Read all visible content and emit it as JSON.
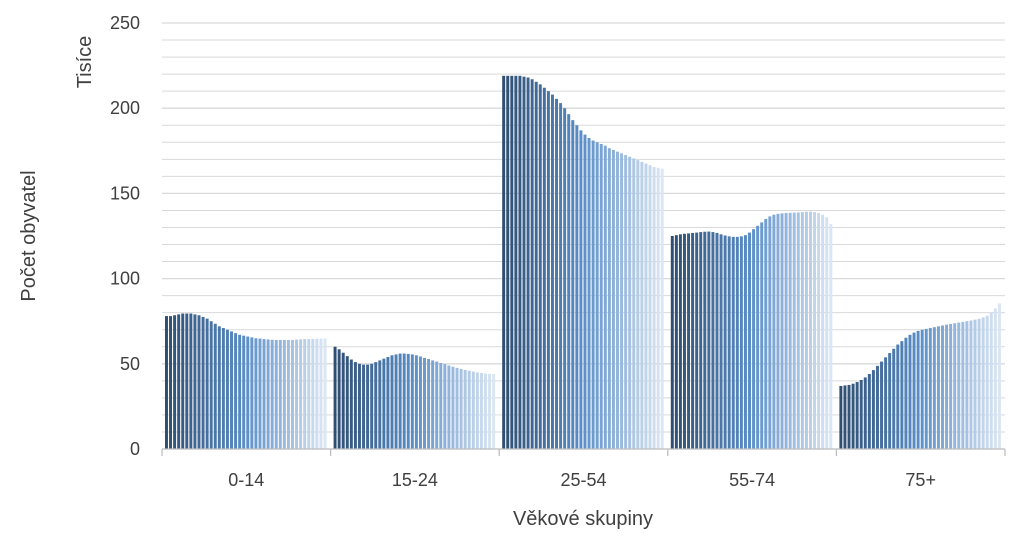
{
  "chart_data": {
    "type": "bar",
    "title": "",
    "xlabel": "Věkové skupiny",
    "ylabel": "Počet obyvatel",
    "unit_label": "Tisíce",
    "ylim": [
      0,
      250
    ],
    "yticks": [
      0,
      50,
      100,
      150,
      200,
      250
    ],
    "grid": true,
    "legend": "none",
    "colors": {
      "dark": "#2f4e72",
      "mid": "#5b8fc9",
      "light": "#dbe6f3",
      "grid": "#d9d9d9",
      "axis": "#bfbfbf",
      "text": "#404040"
    },
    "categories": [
      "0-14",
      "15-24",
      "25-54",
      "55-74",
      "75+"
    ],
    "groups": [
      {
        "category": "0-14",
        "values": [
          78,
          78,
          78.5,
          79,
          79.5,
          79.5,
          79.5,
          79,
          78.5,
          77.5,
          76.5,
          75,
          73.5,
          72,
          71,
          70,
          69,
          68,
          67,
          66.5,
          66,
          65.5,
          65,
          64.8,
          64.5,
          64.3,
          64.1,
          64,
          64,
          64,
          64,
          64,
          64.2,
          64.3,
          64.5,
          64.5,
          64.6,
          64.7,
          64.8,
          64.9
        ]
      },
      {
        "category": "15-24",
        "values": [
          60,
          58.5,
          56.5,
          54.5,
          52.5,
          51,
          50,
          49.5,
          49.5,
          50,
          51,
          52,
          53,
          54,
          55,
          55.5,
          56,
          56,
          55.8,
          55.5,
          55,
          54.3,
          53.5,
          52.8,
          52,
          51.3,
          50.5,
          49.8,
          49,
          48.3,
          47.6,
          47,
          46.4,
          45.9,
          45.4,
          45,
          44.6,
          44.3,
          44.1,
          44
        ]
      },
      {
        "category": "25-54",
        "values": [
          219,
          219,
          219,
          219,
          219,
          218.5,
          218,
          217,
          215.5,
          214,
          212,
          210,
          208,
          205.5,
          203,
          200,
          196.5,
          193,
          190,
          187,
          184.5,
          182.5,
          181,
          180,
          179,
          178,
          176.5,
          175.5,
          174.5,
          173.5,
          172.5,
          171.5,
          170.5,
          169.5,
          168.5,
          167.5,
          166.5,
          165.5,
          165,
          164.5
        ]
      },
      {
        "category": "55-74",
        "values": [
          125,
          125.5,
          126,
          126.3,
          126.5,
          126.8,
          127,
          127.3,
          127.5,
          127.6,
          127.3,
          126.8,
          126,
          125.3,
          124.8,
          124.5,
          124.5,
          124.8,
          125.5,
          127,
          129,
          131,
          133,
          135,
          136.5,
          137.5,
          138,
          138.3,
          138.5,
          138.6,
          138.7,
          138.8,
          139,
          139.2,
          139.3,
          139,
          138.5,
          137.5,
          136,
          132
        ]
      },
      {
        "category": "75+",
        "values": [
          37,
          37.3,
          37.6,
          38.3,
          39.3,
          40.5,
          42,
          44,
          46.3,
          48.8,
          51.3,
          53.8,
          56.3,
          58.8,
          61.3,
          63.3,
          65.3,
          67,
          68.3,
          69.3,
          70,
          70.5,
          71,
          71.5,
          72,
          72.5,
          73,
          73.4,
          73.8,
          74.2,
          74.6,
          75,
          75.4,
          75.9,
          76.4,
          77.2,
          78.2,
          80,
          82.5,
          85.5
        ]
      }
    ]
  }
}
